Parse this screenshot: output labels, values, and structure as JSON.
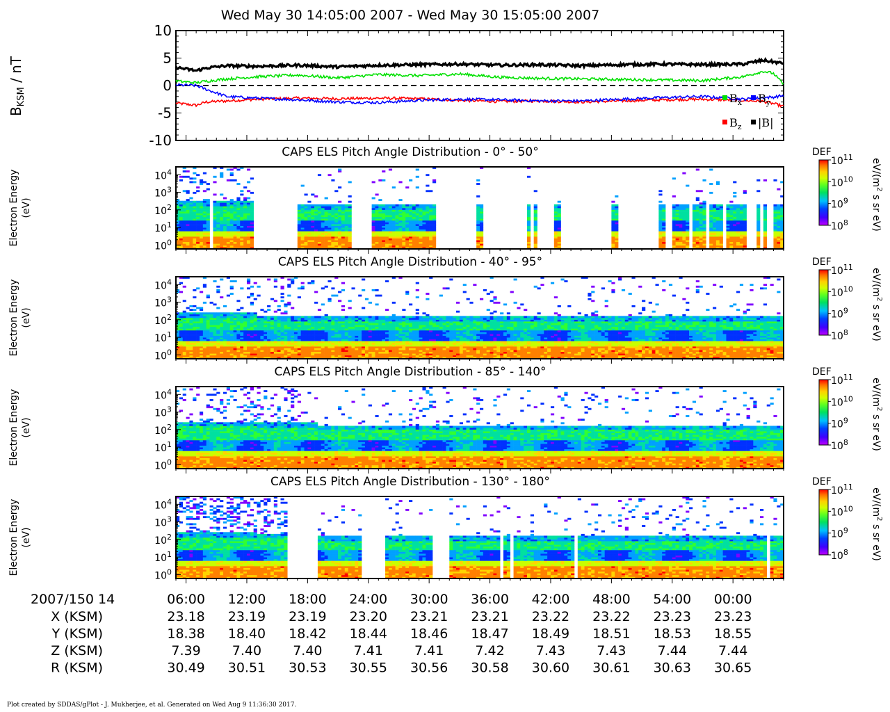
{
  "title": "Wed May 30 14:05:00 2007 - Wed May 30 15:05:00 2007",
  "colors": {
    "bx": "#00e000",
    "by": "#0000ff",
    "bz": "#ff0000",
    "bmag": "#000000",
    "colormap": [
      "#ff0000",
      "#ff8000",
      "#ffd400",
      "#c8ff00",
      "#30ff30",
      "#00e0a0",
      "#00a0ff",
      "#0030ff",
      "#8000ff",
      "#c000ff"
    ]
  },
  "mag": {
    "ylabel": "B",
    "ylabel_sub": "KSM",
    "ylabel_unit": " / nT",
    "yticks": [
      "10",
      "5",
      "0",
      "-5",
      "-10"
    ],
    "legend": {
      "bx": {
        "base": "B",
        "sub": "x"
      },
      "by": {
        "base": "B",
        "sub": "y"
      },
      "bz": {
        "base": "B",
        "sub": "z"
      },
      "bmag": {
        "base": "|B|",
        "sub": ""
      }
    }
  },
  "panels": [
    {
      "title": "CAPS ELS Pitch Angle Distribution - 0° - 50°",
      "ylabel1": "Electron Energy",
      "ylabel2": "(eV)"
    },
    {
      "title": "CAPS ELS Pitch Angle Distribution - 40° - 95°",
      "ylabel1": "Electron Energy",
      "ylabel2": "(eV)"
    },
    {
      "title": "CAPS ELS Pitch Angle Distribution - 85° - 140°",
      "ylabel1": "Electron Energy",
      "ylabel2": "(eV)"
    },
    {
      "title": "CAPS ELS Pitch Angle Distribution - 130° - 180°",
      "ylabel1": "Electron Energy",
      "ylabel2": "(eV)"
    }
  ],
  "energy_ticks": {
    "base": "10",
    "exps": [
      "4",
      "3",
      "2",
      "1",
      "0"
    ]
  },
  "colorbar": {
    "label": "DEF",
    "unit": "eV/(m",
    "unit_sup": "2",
    "unit_rest": " s sr eV)",
    "base": "10",
    "exps": [
      "11",
      "10",
      "9",
      "8"
    ]
  },
  "ephem": {
    "header": "2007/150 14",
    "times": [
      "06:00",
      "12:00",
      "18:00",
      "24:00",
      "30:00",
      "36:00",
      "42:00",
      "48:00",
      "54:00",
      "00:00"
    ],
    "rows": [
      {
        "label": "X (KSM)",
        "values": [
          "23.18",
          "23.19",
          "23.19",
          "23.20",
          "23.21",
          "23.21",
          "23.22",
          "23.22",
          "23.23",
          "23.23"
        ]
      },
      {
        "label": "Y (KSM)",
        "values": [
          "18.38",
          "18.40",
          "18.42",
          "18.44",
          "18.46",
          "18.47",
          "18.49",
          "18.51",
          "18.53",
          "18.55"
        ]
      },
      {
        "label": "Z (KSM)",
        "values": [
          "7.39",
          "7.40",
          "7.40",
          "7.41",
          "7.41",
          "7.42",
          "7.43",
          "7.43",
          "7.44",
          "7.44"
        ]
      },
      {
        "label": "R (KSM)",
        "values": [
          "30.49",
          "30.51",
          "30.53",
          "30.55",
          "30.56",
          "30.58",
          "30.60",
          "30.61",
          "30.63",
          "30.65"
        ]
      }
    ]
  },
  "footer": "Plot created by SDDAS/gPlot - J. Mukherjee, et al.  Generated on Wed Aug 9 11:36:30 2017.",
  "chart_data": [
    {
      "type": "line",
      "x_unit": "minutes after 14:05",
      "x_range": [
        0,
        60
      ],
      "ylim": [
        -10,
        10
      ],
      "series": [
        {
          "name": "|B|",
          "x": [
            0,
            2,
            3,
            5,
            8,
            12,
            16,
            20,
            24,
            28,
            32,
            36,
            40,
            44,
            48,
            52,
            56,
            58,
            59,
            60
          ],
          "values": [
            3.3,
            2.7,
            3.2,
            3.6,
            3.5,
            3.7,
            3.4,
            3.7,
            3.8,
            3.9,
            3.7,
            3.8,
            3.6,
            3.8,
            3.9,
            3.8,
            3.9,
            4.6,
            4.3,
            4.0
          ]
        },
        {
          "name": "B",
          "label_sub": "x",
          "x": [
            0,
            2,
            3,
            5,
            8,
            12,
            16,
            20,
            24,
            28,
            32,
            36,
            40,
            44,
            48,
            52,
            56,
            58,
            59,
            60
          ],
          "values": [
            0.8,
            0.5,
            0.8,
            1.2,
            1.6,
            1.9,
            1.4,
            2.0,
            1.8,
            2.1,
            1.5,
            1.3,
            1.2,
            1.1,
            1.0,
            0.9,
            1.6,
            2.6,
            2.2,
            0.2
          ]
        },
        {
          "name": "B",
          "label_sub": "y",
          "x": [
            0,
            2,
            3,
            5,
            8,
            12,
            16,
            20,
            24,
            28,
            32,
            36,
            40,
            44,
            48,
            52,
            56,
            58,
            59,
            60
          ],
          "values": [
            0.1,
            0.0,
            -0.7,
            -2.0,
            -2.3,
            -2.6,
            -3.0,
            -3.1,
            -2.7,
            -2.5,
            -2.6,
            -2.8,
            -2.8,
            -2.5,
            -2.2,
            -2.0,
            -2.5,
            -2.2,
            -2.1,
            -1.8
          ]
        },
        {
          "name": "B",
          "label_sub": "z",
          "x": [
            0,
            2,
            3,
            5,
            8,
            12,
            16,
            20,
            24,
            28,
            32,
            36,
            40,
            44,
            48,
            52,
            56,
            58,
            59,
            60
          ],
          "values": [
            -3.2,
            -3.6,
            -3.0,
            -2.8,
            -2.5,
            -2.3,
            -2.4,
            -2.3,
            -2.4,
            -2.7,
            -2.9,
            -2.8,
            -3.0,
            -2.8,
            -2.6,
            -2.5,
            -2.7,
            -2.9,
            -3.3,
            -3.8
          ]
        }
      ]
    },
    {
      "type": "heatmap",
      "title": "CAPS ELS Pitch Angle Distribution - 0° - 50°",
      "y_range_eV": [
        0.6,
        28000
      ],
      "y_scale": "log",
      "color_range": [
        100000000.0,
        100000000000.0
      ],
      "gaps_minutes": [
        [
          3.2,
          3.6
        ],
        [
          7.6,
          11.9
        ],
        [
          17.2,
          19.3
        ],
        [
          25.6,
          29.7
        ],
        [
          30.3,
          34.8
        ],
        [
          34.9,
          35.2
        ],
        [
          35.7,
          37.4
        ],
        [
          37.9,
          43.0
        ],
        [
          43.6,
          47.8
        ],
        [
          48.4,
          49.1
        ],
        [
          50.6,
          51.0
        ],
        [
          52.4,
          52.7
        ],
        [
          54.0,
          54.3
        ],
        [
          56.4,
          57.2
        ],
        [
          57.7,
          58.0
        ],
        [
          58.4,
          58.9
        ]
      ],
      "plateau_eV": 200
    },
    {
      "type": "heatmap",
      "title": "CAPS ELS Pitch Angle Distribution - 40° - 95°",
      "y_range_eV": [
        0.6,
        28000
      ],
      "y_scale": "log",
      "color_range": [
        100000000.0,
        100000000000.0
      ],
      "gaps_minutes": [],
      "plateau_eV": 150
    },
    {
      "type": "heatmap",
      "title": "CAPS ELS Pitch Angle Distribution - 85° - 140°",
      "y_range_eV": [
        0.6,
        28000
      ],
      "y_scale": "log",
      "color_range": [
        100000000.0,
        100000000000.0
      ],
      "gaps_minutes": [],
      "plateau_eV": 180
    },
    {
      "type": "heatmap",
      "title": "CAPS ELS Pitch Angle Distribution - 130° - 180°",
      "y_range_eV": [
        0.6,
        28000
      ],
      "y_scale": "log",
      "color_range": [
        100000000.0,
        100000000000.0
      ],
      "gaps_minutes": [
        [
          11.1,
          13.9
        ],
        [
          18.2,
          20.2
        ],
        [
          20.4,
          20.6
        ],
        [
          25.5,
          26.6
        ],
        [
          26.8,
          26.9
        ],
        [
          32.0,
          32.3
        ],
        [
          32.6,
          32.8
        ],
        [
          33.1,
          33.4
        ],
        [
          39.2,
          39.5
        ],
        [
          58.3,
          58.5
        ],
        [
          58.7,
          58.8
        ]
      ],
      "plateau_eV": 160
    }
  ]
}
